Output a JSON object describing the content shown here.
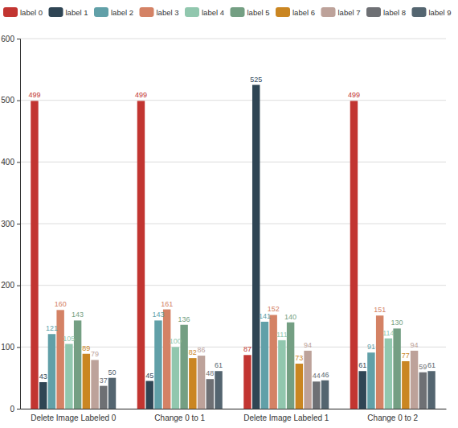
{
  "chart_data": {
    "type": "bar",
    "categories": [
      "Delete Image Labeled 0",
      "Change 0 to 1",
      "Delete Image Labeled 1",
      "Change 0 to 2"
    ],
    "series": [
      {
        "name": "label 0",
        "color": "#c23531",
        "values": [
          499,
          499,
          87,
          499
        ]
      },
      {
        "name": "label 1",
        "color": "#2f4554",
        "values": [
          43,
          45,
          525,
          61
        ]
      },
      {
        "name": "label 2",
        "color": "#61a0a8",
        "values": [
          121,
          143,
          141,
          91
        ]
      },
      {
        "name": "label 3",
        "color": "#d48265",
        "values": [
          160,
          161,
          152,
          151
        ]
      },
      {
        "name": "label 4",
        "color": "#91c7ae",
        "values": [
          105,
          100,
          111,
          114
        ]
      },
      {
        "name": "label 5",
        "color": "#749f83",
        "values": [
          143,
          136,
          140,
          130
        ]
      },
      {
        "name": "label 6",
        "color": "#ca8622",
        "values": [
          89,
          82,
          73,
          77
        ]
      },
      {
        "name": "label 7",
        "color": "#bda29a",
        "values": [
          79,
          86,
          94,
          94
        ]
      },
      {
        "name": "label 8",
        "color": "#6e7074",
        "values": [
          37,
          48,
          44,
          59
        ]
      },
      {
        "name": "label 9",
        "color": "#546570",
        "values": [
          50,
          61,
          46,
          61
        ]
      }
    ],
    "ylim": [
      0,
      600
    ],
    "yticks": [
      0,
      100,
      200,
      300,
      400,
      500,
      600
    ],
    "grid": true,
    "legend": "top",
    "data_labels": true
  }
}
